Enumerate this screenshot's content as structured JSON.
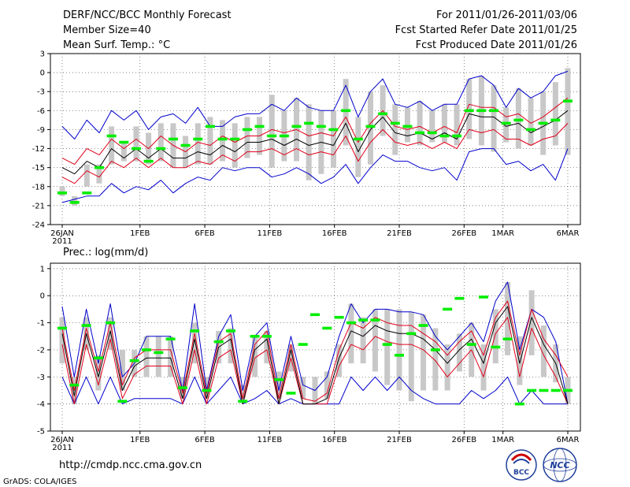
{
  "header": {
    "left_line1": "DERF/NCC/BCC Monthly Forecast",
    "left_line2": "Member Size=40",
    "left_line3": "Mean Surf. Temp.: °C",
    "right_line1": "For 2011/01/26-2011/03/06",
    "right_line2": "Fcst Started Refer Date 2011/01/25",
    "right_line3": "Fcst Produced Date 2011/01/26"
  },
  "footer": {
    "url": "http://cmdp.ncc.cma.gov.cn",
    "credit": "GrADS: COLA/IGES",
    "logo1_text": "BCC",
    "logo2_text": "NCC"
  },
  "colors": {
    "ensemble_mean": "#000000",
    "one_std_band": "#e0001a",
    "extreme_range": "#0000cc",
    "quartile_bar": "#c8c8c8",
    "median_mark": "#00ee00",
    "grid": "#555555"
  },
  "chart_data": [
    {
      "type": "line",
      "title": "Mean Surf. Temp.: °C",
      "x_tick_labels": [
        "26JAN",
        "1FEB",
        "6FEB",
        "11FEB",
        "16FEB",
        "21FEB",
        "26FEB",
        "1MAR",
        "6MAR"
      ],
      "x_tick_days": [
        0,
        6,
        11,
        16,
        21,
        26,
        31,
        34,
        39
      ],
      "x_sublabel": "2011",
      "yticks": [
        3,
        0,
        -3,
        -6,
        -9,
        -12,
        -15,
        -18,
        -21,
        -24
      ],
      "ylim": [
        -24,
        3
      ],
      "series": [
        {
          "name": "max",
          "values": [
            -8.5,
            -10.5,
            -7.5,
            -9.5,
            -6,
            -7.5,
            -6,
            -9,
            -7,
            -6.5,
            -8,
            -5.5,
            -8.5,
            -8.5,
            -7,
            -6.5,
            -6.5,
            -5,
            -6,
            -4,
            -5.5,
            -6,
            -6,
            -2,
            -7,
            -3,
            -1,
            -5,
            -5.5,
            -4.5,
            -6,
            -5,
            -5,
            -1,
            -0.5,
            -2,
            -5.5,
            -2.5,
            -4,
            -3,
            -0.5,
            0.2
          ]
        },
        {
          "name": "plus_std",
          "values": [
            -13.5,
            -14.5,
            -12,
            -13,
            -10.5,
            -12,
            -10.5,
            -12,
            -10,
            -11.5,
            -12.5,
            -11,
            -11.5,
            -10,
            -11,
            -10,
            -10,
            -9,
            -9.5,
            -9,
            -10,
            -9.5,
            -10,
            -7,
            -11,
            -8,
            -6,
            -8.5,
            -9,
            -8.5,
            -9.5,
            -8.5,
            -9.5,
            -5,
            -5.5,
            -5.5,
            -7,
            -6.5,
            -8,
            -7,
            -5.5,
            -4
          ]
        },
        {
          "name": "mean",
          "values": [
            -15,
            -16,
            -14,
            -15,
            -12,
            -13.5,
            -12,
            -13.5,
            -12,
            -13.5,
            -13.5,
            -12.5,
            -13,
            -11.5,
            -12.5,
            -11,
            -11,
            -10.5,
            -11.5,
            -10.5,
            -11.5,
            -11,
            -11.5,
            -8,
            -12.5,
            -9,
            -7,
            -9.5,
            -10,
            -9.5,
            -10.5,
            -9.5,
            -10.5,
            -6.5,
            -7,
            -7,
            -8.5,
            -8,
            -9.5,
            -8.5,
            -7.5,
            -6
          ]
        },
        {
          "name": "minus_std",
          "values": [
            -16.5,
            -17.5,
            -15.5,
            -16.5,
            -14,
            -15,
            -13.5,
            -15,
            -13.5,
            -15,
            -15,
            -14,
            -14.5,
            -13,
            -14,
            -12.5,
            -12.5,
            -12,
            -13,
            -12,
            -13,
            -12.5,
            -13,
            -10,
            -14,
            -11,
            -9,
            -11,
            -11.5,
            -11,
            -12,
            -11,
            -12,
            -9,
            -9.5,
            -9,
            -10.5,
            -10.5,
            -11.5,
            -10.5,
            -10,
            -8
          ]
        },
        {
          "name": "min",
          "values": [
            -20.5,
            -20,
            -19.5,
            -19.5,
            -17.5,
            -19,
            -18,
            -18.5,
            -17,
            -19,
            -17.5,
            -16.5,
            -17,
            -15,
            -15.5,
            -15,
            -15,
            -16.5,
            -16,
            -15,
            -16,
            -17.5,
            -16.5,
            -14.5,
            -17.5,
            -15,
            -13,
            -14,
            -14,
            -15,
            -15.5,
            -15,
            -17,
            -12.5,
            -12,
            -12,
            -14.5,
            -14,
            -15.5,
            -14.5,
            -17,
            -12
          ]
        },
        {
          "name": "q75",
          "values": [
            -18,
            -19.5,
            -14.5,
            -14.5,
            -8.5,
            -11,
            -8.5,
            -9.5,
            -8,
            -8,
            -10,
            -8,
            -7,
            -7.5,
            -8,
            -7,
            -7,
            -3.5,
            -6,
            -4,
            -5,
            -6,
            -6,
            -1,
            -7,
            -3,
            -2,
            -5,
            -5.5,
            -4.5,
            -6,
            -5,
            -5,
            -1,
            -0.5,
            -2,
            -5.5,
            -2.5,
            -4,
            -3,
            -1.5,
            0.7
          ]
        },
        {
          "name": "q25",
          "values": [
            -19.5,
            -21,
            -18,
            -17.5,
            -14.5,
            -14,
            -14,
            -14.5,
            -14,
            -15,
            -15,
            -14.5,
            -14.5,
            -14,
            -15,
            -13.5,
            -13,
            -15,
            -14,
            -14,
            -17,
            -16,
            -15,
            -11.5,
            -16.5,
            -14.5,
            -10,
            -13,
            -11,
            -11.5,
            -11,
            -11,
            -11.5,
            -10.5,
            -11.5,
            -12.5,
            -11,
            -12,
            -11.5,
            -13,
            -11.5,
            -13
          ]
        },
        {
          "name": "median",
          "values": [
            -19,
            -20.5,
            -19,
            -15,
            -10,
            -11,
            -12,
            -14,
            -12,
            -10.5,
            -11.5,
            -10.5,
            -8.5,
            -10.5,
            -10.5,
            -9,
            -8.5,
            -10,
            -10,
            -8.5,
            -8,
            -8.5,
            -9,
            -6,
            -10.5,
            -8.5,
            -6.5,
            -8,
            -8.5,
            -9.5,
            -9.5,
            -10,
            -10,
            -6,
            -6,
            -6,
            -8,
            -7.5,
            -9,
            -8,
            -7.5,
            -4.5
          ]
        }
      ]
    },
    {
      "type": "line",
      "title": "Prec.: log(mm/d)",
      "x_tick_labels": [
        "26JAN",
        "1FEB",
        "6FEB",
        "11FEB",
        "16FEB",
        "21FEB",
        "26FEB",
        "1MAR",
        "6MAR"
      ],
      "x_tick_days": [
        0,
        6,
        11,
        16,
        21,
        26,
        31,
        34,
        39
      ],
      "x_sublabel": "2011",
      "yticks": [
        1,
        0,
        -1,
        -2,
        -3,
        -4,
        -5
      ],
      "ylim": [
        -5,
        1.2
      ],
      "series": [
        {
          "name": "max",
          "values": [
            -0.4,
            -3,
            -0.5,
            -2.5,
            -0.3,
            -3,
            -2.5,
            -1.5,
            -1.5,
            -1.5,
            -3.5,
            -0.3,
            -3.5,
            -1.5,
            -0.7,
            -3.5,
            -1.5,
            -1,
            -3.5,
            -1.5,
            -3.3,
            -3.5,
            -3,
            -1.5,
            -0.3,
            -1,
            -0.5,
            -0.5,
            -0.6,
            -0.6,
            -0.7,
            -1.5,
            -2,
            -1.5,
            -1,
            -1.7,
            -0.2,
            0.5,
            -2,
            -0.5,
            -0.8,
            -1.7,
            -4
          ]
        },
        {
          "name": "plus_std",
          "values": [
            -1.2,
            -3.5,
            -1.2,
            -2.8,
            -1,
            -3.3,
            -2.3,
            -2,
            -2,
            -2,
            -3.6,
            -1.4,
            -3.6,
            -1.7,
            -1.4,
            -3.8,
            -1.8,
            -1.3,
            -3.8,
            -1.8,
            -3.8,
            -3.9,
            -3.6,
            -2,
            -1,
            -1.2,
            -0.8,
            -1,
            -1.1,
            -1.1,
            -1.4,
            -1.7,
            -2.2,
            -1.7,
            -1.3,
            -2.2,
            -0.8,
            -0.2,
            -2.2,
            -0.5,
            -1.6,
            -2.2,
            -3
          ]
        },
        {
          "name": "mean",
          "values": [
            -1.4,
            -3.7,
            -1.4,
            -3,
            -1.3,
            -3.5,
            -2.6,
            -2.3,
            -2.3,
            -2.3,
            -3.8,
            -1.6,
            -3.8,
            -1.9,
            -1.6,
            -4,
            -2,
            -1.6,
            -4,
            -2,
            -4,
            -4,
            -3.8,
            -2.3,
            -1.3,
            -1.5,
            -1.1,
            -1.3,
            -1.4,
            -1.4,
            -1.6,
            -2,
            -2.5,
            -2,
            -1.6,
            -2.5,
            -1,
            -0.4,
            -2.5,
            -0.8,
            -1.8,
            -2.5,
            -4
          ]
        },
        {
          "name": "minus_std",
          "values": [
            -1.8,
            -4,
            -1.8,
            -3.3,
            -1.6,
            -3.8,
            -2.9,
            -2.6,
            -2.6,
            -2.6,
            -4,
            -2,
            -4,
            -2.3,
            -2,
            -4,
            -2.3,
            -2,
            -4,
            -2.3,
            -4,
            -4,
            -4,
            -2.6,
            -1.8,
            -2,
            -1.5,
            -1.7,
            -1.8,
            -1.8,
            -2,
            -2.4,
            -3,
            -2.5,
            -2,
            -3,
            -1.4,
            -0.8,
            -3,
            -1.2,
            -2.2,
            -3,
            -4
          ]
        },
        {
          "name": "min",
          "values": [
            -3,
            -4,
            -3,
            -4,
            -3,
            -4,
            -3.8,
            -3.8,
            -3.8,
            -3.8,
            -4,
            -3,
            -4,
            -3.5,
            -3,
            -4,
            -3.8,
            -3.5,
            -4,
            -3.8,
            -4,
            -4,
            -4,
            -4,
            -3,
            -3.5,
            -3,
            -3.5,
            -3,
            -3.5,
            -3.8,
            -4,
            -4,
            -4,
            -3.5,
            -3.8,
            -3.5,
            -3,
            -4,
            -3.5,
            -4,
            -4,
            -4
          ]
        },
        {
          "name": "q75",
          "values": [
            -0.8,
            -3,
            -0.8,
            -2.2,
            -0.8,
            -2,
            -2,
            -1.5,
            -1.5,
            -1.5,
            -3,
            -1,
            -3,
            -1.3,
            -1.2,
            -3.3,
            -1.5,
            -1.3,
            -2.8,
            -1.8,
            -3,
            -3,
            -2.8,
            -1.8,
            -0.3,
            -0.8,
            -0.5,
            -0.5,
            -0.5,
            -0.6,
            -0.7,
            -1.2,
            -1.8,
            -1.4,
            -1,
            -1.8,
            -0.5,
            0.5,
            -1.5,
            0.2,
            -1.1,
            -1.8,
            -3
          ]
        },
        {
          "name": "q25",
          "values": [
            -2.5,
            -4,
            -2,
            -3.5,
            -2,
            -3.5,
            -3,
            -3,
            -3,
            -3,
            -3.8,
            -2.5,
            -3.8,
            -2.5,
            -2.5,
            -3.8,
            -3,
            -2.5,
            -3.8,
            -2.8,
            -3.8,
            -4,
            -3.8,
            -3,
            -2.5,
            -2.5,
            -2.8,
            -3.3,
            -3.5,
            -3.9,
            -3.5,
            -3.5,
            -3.5,
            -2.8,
            -3,
            -3.5,
            -2.5,
            -2.2,
            -3.3,
            -2.2,
            -3,
            -3.2,
            -4
          ]
        },
        {
          "name": "median",
          "values": [
            -1.2,
            -3.3,
            -1.1,
            -2.3,
            -1,
            -3.9,
            -2.4,
            -2,
            -2.1,
            -1.6,
            -3.4,
            -1.3,
            -3.5,
            -1.7,
            -1.3,
            -3.9,
            -1.5,
            -1.5,
            -3.1,
            -3.6,
            -1.8,
            -0.7,
            -1.2,
            -0.8,
            -1,
            -0.9,
            -0.9,
            -1.8,
            -2.2,
            -1.4,
            -1.1,
            -2,
            -0.5,
            -0.1,
            -1.8,
            -0.05,
            -1.9,
            -1.6,
            -4,
            -3.5,
            -3.5,
            -3.5,
            -3.5
          ]
        }
      ]
    }
  ]
}
